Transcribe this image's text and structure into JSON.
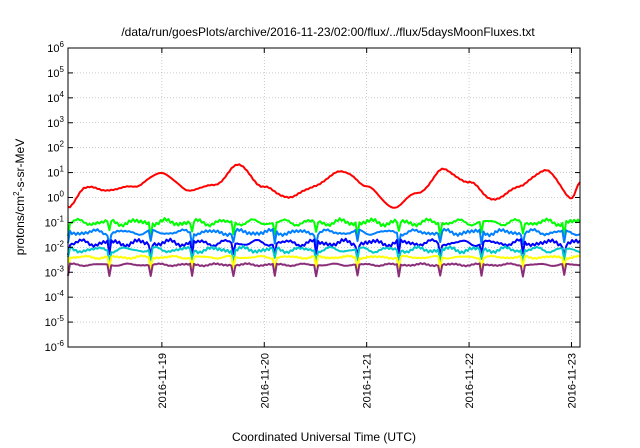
{
  "chart_data": {
    "type": "line",
    "title": "/data/run/goesPlots/archive/2016-11-23/02:00/flux/../flux/5daysMoonFluxes.txt",
    "xlabel": "Coordinated Universal Time (UTC)",
    "ylabel": {
      "prefix": "protons/cm",
      "superscript": "2",
      "suffix": "-s-sr-MeV"
    },
    "y_scale": "log",
    "ylim": [
      1e-06,
      1000000.0
    ],
    "y_ticks": [
      {
        "value": -6,
        "mantissa": "10",
        "exponent": "-6"
      },
      {
        "value": -5,
        "mantissa": "10",
        "exponent": "-5"
      },
      {
        "value": -4,
        "mantissa": "10",
        "exponent": "-4"
      },
      {
        "value": -3,
        "mantissa": "10",
        "exponent": "-3"
      },
      {
        "value": -2,
        "mantissa": "10",
        "exponent": "-2"
      },
      {
        "value": -1,
        "mantissa": "10",
        "exponent": "-1"
      },
      {
        "value": 0,
        "mantissa": "10",
        "exponent": "0"
      },
      {
        "value": 1,
        "mantissa": "10",
        "exponent": "1"
      },
      {
        "value": 2,
        "mantissa": "10",
        "exponent": "2"
      },
      {
        "value": 3,
        "mantissa": "10",
        "exponent": "3"
      },
      {
        "value": 4,
        "mantissa": "10",
        "exponent": "4"
      },
      {
        "value": 5,
        "mantissa": "10",
        "exponent": "5"
      },
      {
        "value": 6,
        "mantissa": "10",
        "exponent": "6"
      }
    ],
    "xlim": [
      "2016-11-18 02:00",
      "2016-11-23 02:00"
    ],
    "x_ticks": [
      "2016-11-19",
      "2016-11-20",
      "2016-11-21",
      "2016-11-22",
      "2016-11-23"
    ],
    "grid": true,
    "legend": "none",
    "series": [
      {
        "color": "#ff0000",
        "x": [
          "2016-11-18 02:00",
          "2016-11-18 06:00",
          "2016-11-18 12:00",
          "2016-11-18 18:00",
          "2016-11-19 00:00",
          "2016-11-19 06:00",
          "2016-11-19 12:00",
          "2016-11-19 18:00",
          "2016-11-20 00:00",
          "2016-11-20 06:00",
          "2016-11-20 12:00",
          "2016-11-20 18:00",
          "2016-11-21 00:00",
          "2016-11-21 06:00",
          "2016-11-21 12:00",
          "2016-11-21 18:00",
          "2016-11-22 00:00",
          "2016-11-22 06:00",
          "2016-11-22 12:00",
          "2016-11-22 18:00",
          "2016-11-23 00:00",
          "2016-11-23 02:00"
        ],
        "values": [
          0.4,
          2.5,
          2.0,
          3.0,
          10,
          2.0,
          3.0,
          20,
          2.5,
          1.0,
          3.0,
          12,
          3.0,
          0.4,
          1.5,
          13,
          4.0,
          0.8,
          3.0,
          13,
          1.0,
          4.0
        ]
      },
      {
        "color": "#00ff00",
        "x": [
          "2016-11-18 02:00",
          "2016-11-19 02:00",
          "2016-11-20 02:00",
          "2016-11-21 02:00",
          "2016-11-22 02:00",
          "2016-11-23 02:00"
        ],
        "values": [
          0.1,
          0.1,
          0.1,
          0.1,
          0.1,
          0.1
        ]
      },
      {
        "color": "#0080ff",
        "x": [
          "2016-11-18 02:00",
          "2016-11-19 02:00",
          "2016-11-20 02:00",
          "2016-11-21 02:00",
          "2016-11-22 02:00",
          "2016-11-23 02:00"
        ],
        "values": [
          0.04,
          0.04,
          0.04,
          0.04,
          0.04,
          0.04
        ]
      },
      {
        "color": "#0000ff",
        "x": [
          "2016-11-18 02:00",
          "2016-11-19 02:00",
          "2016-11-20 02:00",
          "2016-11-21 02:00",
          "2016-11-22 02:00",
          "2016-11-23 02:00"
        ],
        "values": [
          0.015,
          0.015,
          0.015,
          0.015,
          0.015,
          0.015
        ]
      },
      {
        "color": "#00c8c8",
        "x": [
          "2016-11-18 02:00",
          "2016-11-19 02:00",
          "2016-11-20 02:00",
          "2016-11-21 02:00",
          "2016-11-22 02:00",
          "2016-11-23 02:00"
        ],
        "values": [
          0.008,
          0.008,
          0.008,
          0.008,
          0.008,
          0.008
        ]
      },
      {
        "color": "#ffff00",
        "x": [
          "2016-11-18 02:00",
          "2016-11-19 02:00",
          "2016-11-20 02:00",
          "2016-11-21 02:00",
          "2016-11-22 02:00",
          "2016-11-23 02:00"
        ],
        "values": [
          0.004,
          0.004,
          0.004,
          0.004,
          0.004,
          0.004
        ]
      },
      {
        "color": "#8b2e7a",
        "x": [
          "2016-11-18 02:00",
          "2016-11-19 02:00",
          "2016-11-20 02:00",
          "2016-11-21 02:00",
          "2016-11-22 02:00",
          "2016-11-23 02:00"
        ],
        "values": [
          0.002,
          0.002,
          0.002,
          0.002,
          0.002,
          0.002
        ]
      }
    ]
  }
}
